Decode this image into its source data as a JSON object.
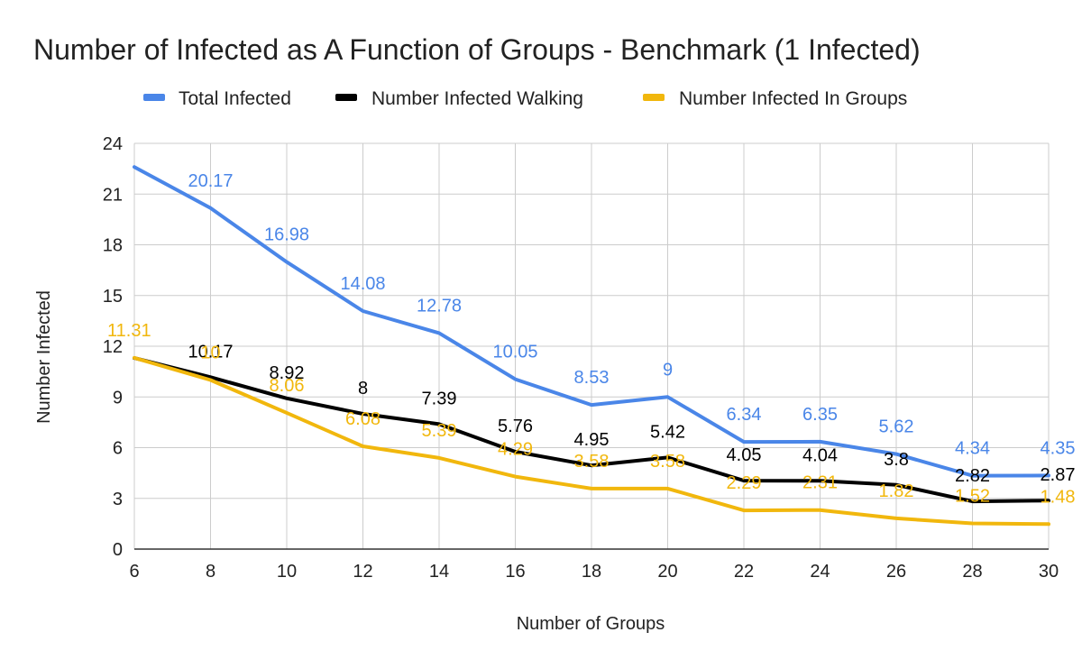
{
  "chart_data": {
    "type": "line",
    "title": "Number of Infected as A Function of Groups - Benchmark (1 Infected)",
    "xlabel": "Number of Groups",
    "ylabel": "Number Infected",
    "x": [
      6,
      8,
      10,
      12,
      14,
      16,
      18,
      20,
      22,
      24,
      26,
      28,
      30
    ],
    "xlim": [
      6,
      30
    ],
    "ylim": [
      0,
      24
    ],
    "x_ticks": [
      "6",
      "8",
      "10",
      "12",
      "14",
      "16",
      "18",
      "20",
      "22",
      "24",
      "26",
      "28",
      "30"
    ],
    "y_ticks": [
      "0",
      "3",
      "6",
      "9",
      "12",
      "15",
      "18",
      "21",
      "24"
    ],
    "grid": true,
    "legend_position": "top",
    "series": [
      {
        "name": "Total Infected",
        "color": "#4a86e8",
        "values": [
          22.6,
          20.17,
          16.98,
          14.08,
          12.78,
          10.05,
          8.53,
          9,
          6.34,
          6.35,
          5.62,
          4.34,
          4.35
        ],
        "labels": [
          "",
          "20.17",
          "16.98",
          "14.08",
          "12.78",
          "10.05",
          "8.53",
          "9",
          "6.34",
          "6.35",
          "5.62",
          "4.34",
          "4.35"
        ]
      },
      {
        "name": "Number Infected Walking",
        "color": "#000000",
        "values": [
          11.3,
          10.17,
          8.92,
          8,
          7.39,
          5.76,
          4.95,
          5.42,
          4.05,
          4.04,
          3.8,
          2.82,
          2.87
        ],
        "labels": [
          "",
          "10.17",
          "8.92",
          "8",
          "7.39",
          "5.76",
          "4.95",
          "5.42",
          "4.05",
          "4.04",
          "3.8",
          "2.82",
          "2.87"
        ]
      },
      {
        "name": "Number Infected In Groups",
        "color": "#f1b70d",
        "values": [
          11.31,
          10,
          8.06,
          6.08,
          5.39,
          4.29,
          3.58,
          3.58,
          2.29,
          2.31,
          1.82,
          1.52,
          1.48
        ],
        "labels": [
          "11.31",
          "10",
          "8.06",
          "6.08",
          "5.39",
          "4.29",
          "3.58",
          "3.58",
          "2.29",
          "2.31",
          "1.82",
          "1.52",
          "1.48"
        ]
      }
    ]
  }
}
